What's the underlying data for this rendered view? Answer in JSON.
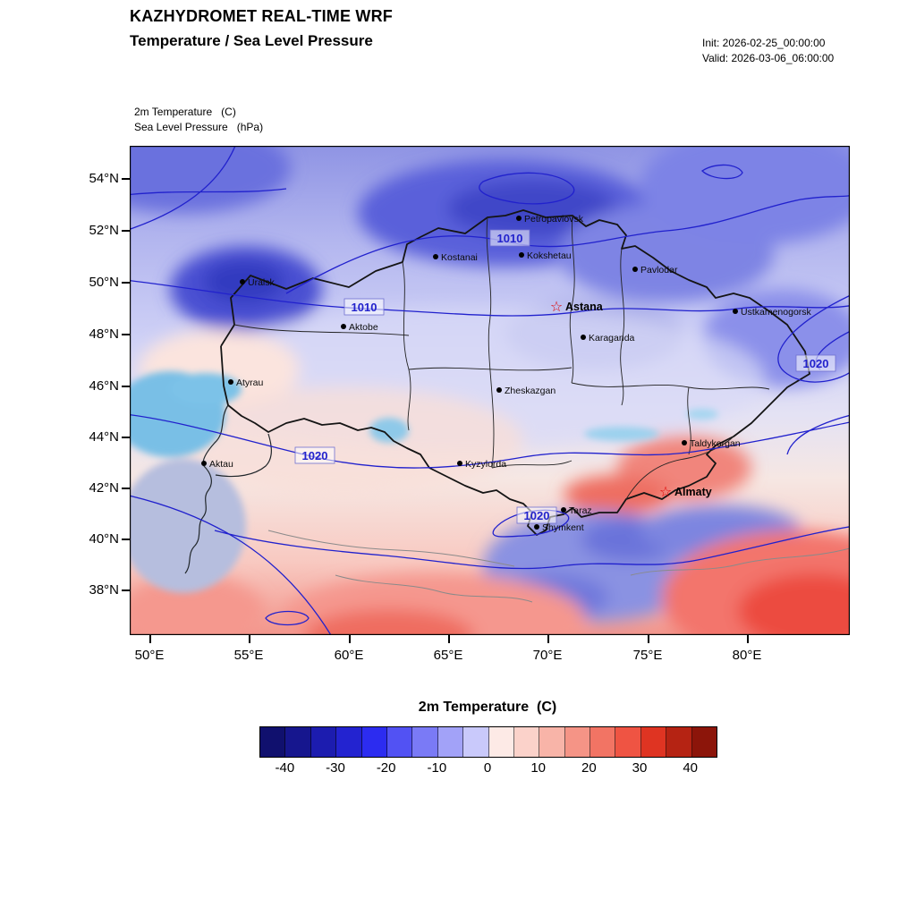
{
  "header": {
    "title": "KAZHYDROMET REAL-TIME WRF",
    "subtitle": "Temperature / Sea Level Pressure",
    "init": "Init: 2026-02-25_00:00:00",
    "valid": "Valid: 2026-03-06_06:00:00"
  },
  "map": {
    "layer_labels": {
      "temperature": "2m Temperature   (C)",
      "pressure": "Sea Level Pressure   (hPa)"
    },
    "lat_ticks": [
      "54°N",
      "52°N",
      "50°N",
      "48°N",
      "46°N",
      "44°N",
      "42°N",
      "40°N",
      "38°N"
    ],
    "lon_ticks": [
      "50°E",
      "55°E",
      "60°E",
      "65°E",
      "70°E",
      "75°E",
      "80°E"
    ],
    "cities": [
      {
        "name": "Petropavlovsk"
      },
      {
        "name": "Kostanai"
      },
      {
        "name": "Kokshetau"
      },
      {
        "name": "Pavlodar"
      },
      {
        "name": "Uralsk"
      },
      {
        "name": "Ustkamenogorsk"
      },
      {
        "name": "Aktobe"
      },
      {
        "name": "Karaganda"
      },
      {
        "name": "Atyrau"
      },
      {
        "name": "Zheskazgan"
      },
      {
        "name": "Taldykorgan"
      },
      {
        "name": "Aktau"
      },
      {
        "name": "Kyzylorda"
      },
      {
        "name": "Taraz"
      },
      {
        "name": "Shymkent"
      }
    ],
    "capitals": [
      {
        "name": "Astana"
      },
      {
        "name": "Almaty"
      }
    ],
    "pressure_labels": [
      "1010",
      "1010",
      "1020",
      "1020",
      "1020"
    ]
  },
  "icons": {
    "capital_star": "☆"
  },
  "colorbar": {
    "title": "2m Temperature  (C)",
    "units": "C",
    "value_min": -45,
    "value_max": 45,
    "step": 5,
    "tick_labels": [
      "-40",
      "-30",
      "-20",
      "-10",
      "0",
      "10",
      "20",
      "30",
      "40"
    ],
    "colors": [
      "#10106e",
      "#16168e",
      "#1c1caf",
      "#2323d0",
      "#2c2cf0",
      "#5252f3",
      "#7a7af6",
      "#a2a2f8",
      "#c9c9fb",
      "#fdeae6",
      "#fbd2ca",
      "#f8b4a8",
      "#f59486",
      "#f27464",
      "#ef5443",
      "#df3422",
      "#b52313",
      "#8c150a"
    ],
    "contour_color": "#2121cd"
  }
}
